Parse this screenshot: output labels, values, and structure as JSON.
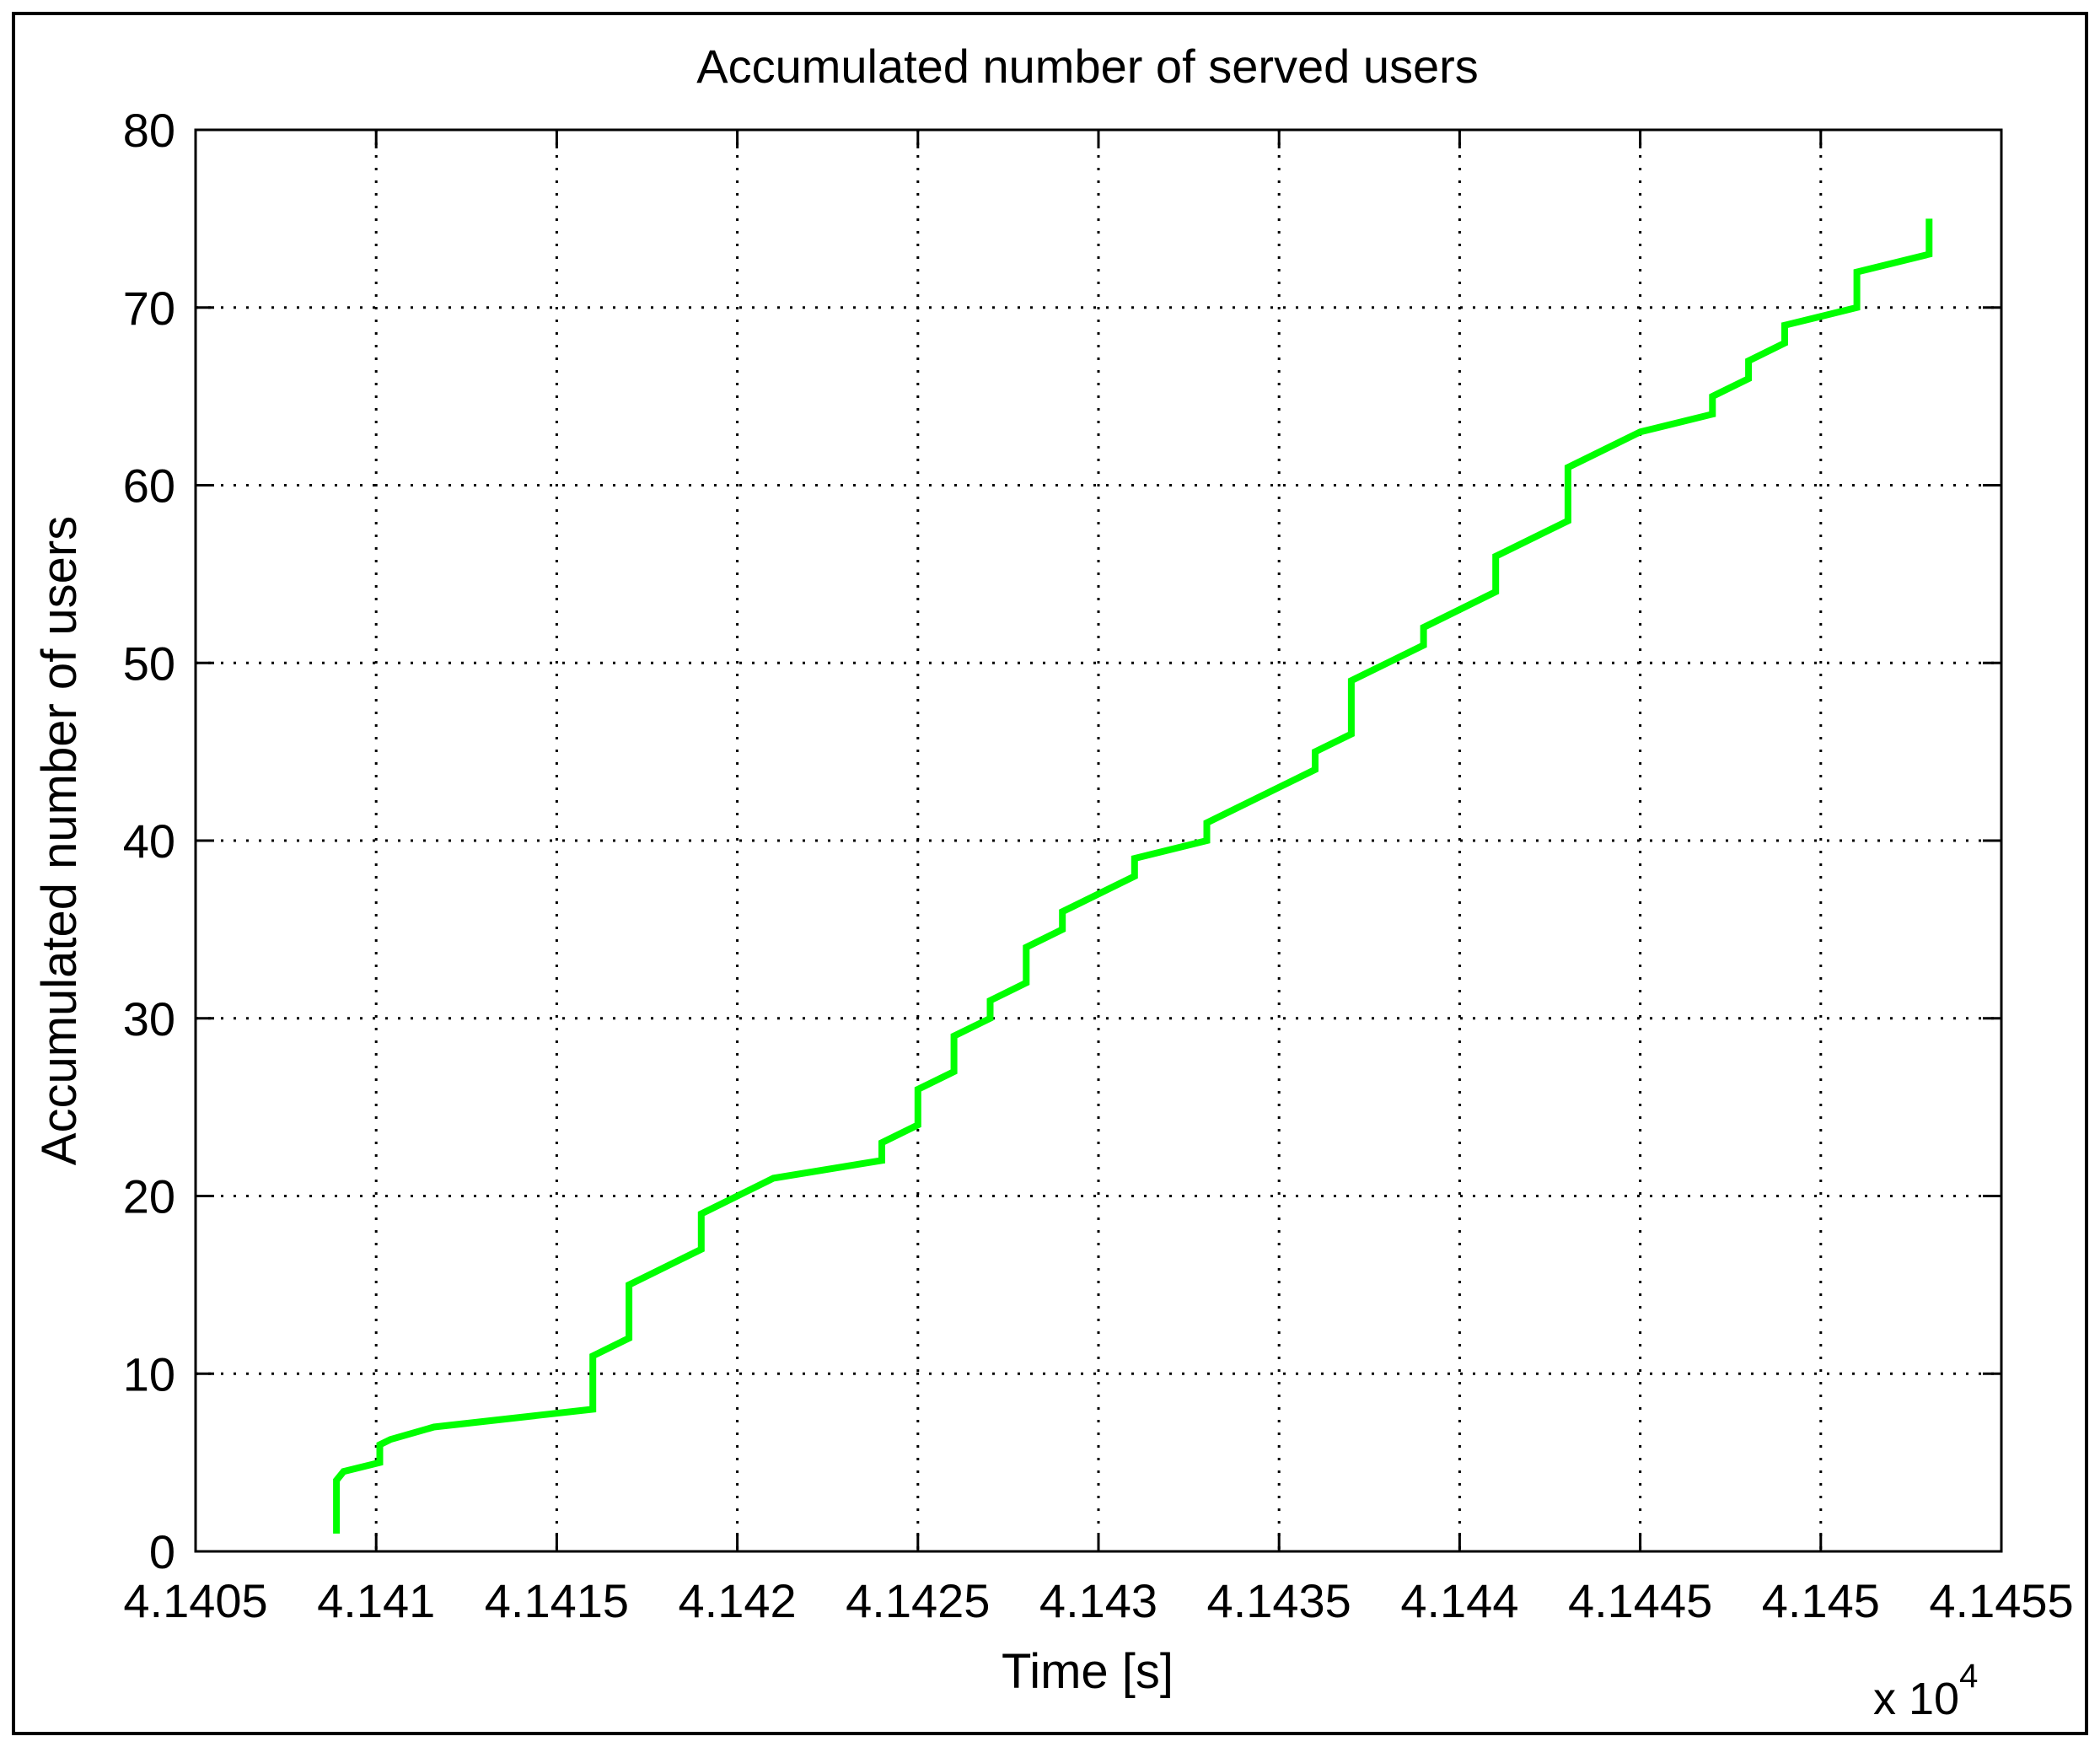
{
  "chart_data": {
    "type": "line",
    "title": "Accumulated number of served users",
    "xlabel": "Time [s]",
    "ylabel": "Accumulated number of users",
    "x_exponent_label": "x 10",
    "x_exponent_power": "4",
    "xlim": [
      4.1405,
      4.1455
    ],
    "ylim": [
      0,
      80
    ],
    "xticks": [
      4.1405,
      4.141,
      4.1415,
      4.142,
      4.1425,
      4.143,
      4.1435,
      4.144,
      4.1445,
      4.145,
      4.1455
    ],
    "xtick_labels": [
      "4.1405",
      "4.141",
      "4.1415",
      "4.142",
      "4.1425",
      "4.143",
      "4.1435",
      "4.144",
      "4.1445",
      "4.145",
      "4.1455"
    ],
    "yticks": [
      0,
      10,
      20,
      30,
      40,
      50,
      60,
      70,
      80
    ],
    "ytick_labels": [
      "0",
      "10",
      "20",
      "30",
      "40",
      "50",
      "60",
      "70",
      "80"
    ],
    "grid": true,
    "line_color": "#00ff00",
    "series": [
      {
        "x": [
          4.14089,
          4.14089,
          4.14091,
          4.14101,
          4.14101,
          4.14104,
          4.14116,
          4.1416,
          4.1416,
          4.1417,
          4.1417,
          4.1418,
          4.1419,
          4.1419,
          4.1421,
          4.1424,
          4.1424,
          4.1425,
          4.1425,
          4.1426,
          4.1426,
          4.1427,
          4.1427,
          4.1428,
          4.1428,
          4.1429,
          4.1429,
          4.1431,
          4.1431,
          4.1433,
          4.1433,
          4.1436,
          4.1436,
          4.1437,
          4.1437,
          4.1439,
          4.1439,
          4.1441,
          4.1441,
          4.1443,
          4.1443,
          4.1445,
          4.1447,
          4.1447,
          4.1448,
          4.1448,
          4.1449,
          4.1449,
          4.1451,
          4.1451,
          4.1453,
          4.1453
        ],
        "y": [
          1,
          4,
          4.5,
          5,
          6,
          6.3,
          7,
          8,
          11,
          12,
          15,
          16,
          17,
          19,
          21,
          22,
          23,
          24,
          26,
          27,
          29,
          30,
          31,
          32,
          34,
          35,
          36,
          38,
          39,
          40,
          41,
          44,
          45,
          46,
          49,
          51,
          52,
          54,
          56,
          58,
          61,
          63,
          64,
          65,
          66,
          67,
          68,
          69,
          70,
          72,
          73,
          75
        ]
      }
    ]
  }
}
